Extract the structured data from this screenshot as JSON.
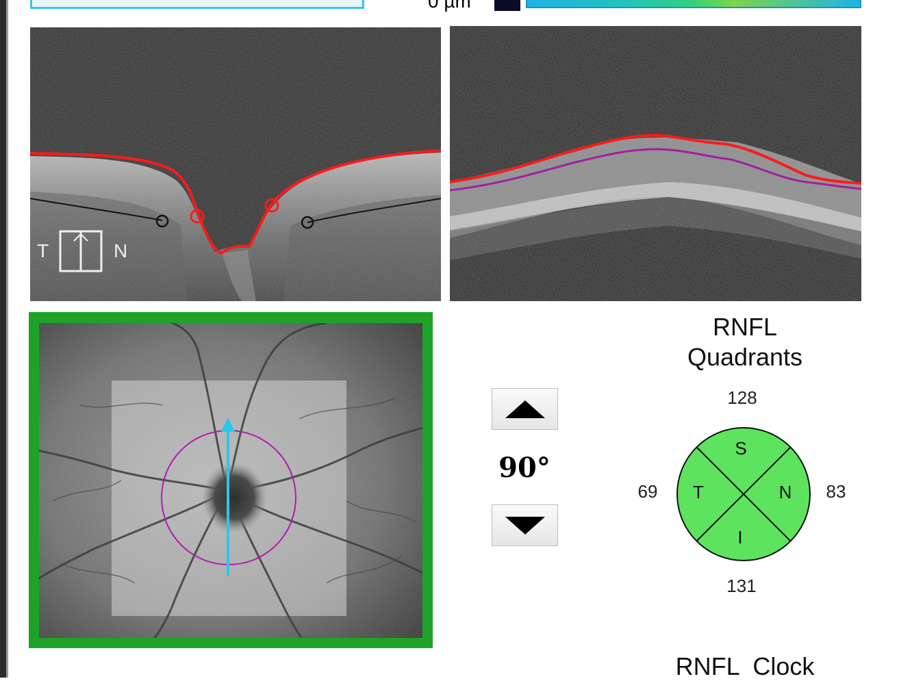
{
  "header": {
    "scale_label": "0 µm"
  },
  "bscan_left": {
    "orientation_temporal": "T",
    "orientation_nasal": "N"
  },
  "controls": {
    "angle_value": "90°",
    "up_button_icon": "triangle-up-icon",
    "down_button_icon": "triangle-down-icon"
  },
  "rnfl_quadrants": {
    "title_line1": "RNFL",
    "title_line2": "Quadrants",
    "superior_value": "128",
    "temporal_value": "69",
    "nasal_value": "83",
    "inferior_value": "131",
    "superior_label": "S",
    "temporal_label": "T",
    "nasal_label": "N",
    "inferior_label": "I",
    "fill_color": "#5ee35e"
  },
  "rnfl_clock": {
    "title": "RNFL  Clock"
  },
  "colors": {
    "fundus_frame": "#1fa22a",
    "rnfl_boundary": "#ff1a1a",
    "inner_boundary": "#a020a0",
    "scan_arrow": "#27c9e8",
    "scan_circle": "#b01ab0"
  }
}
